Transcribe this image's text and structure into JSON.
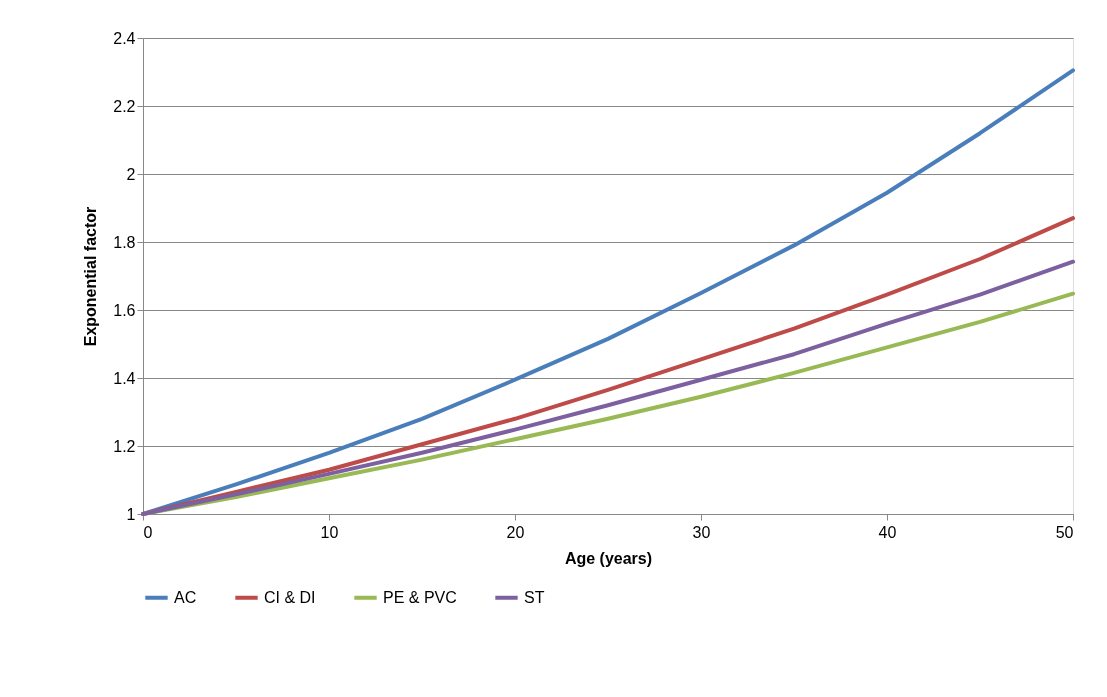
{
  "chart_data": {
    "type": "line",
    "xlabel": "Age (years)",
    "ylabel": "Exponential factor",
    "x": [
      0,
      5,
      10,
      15,
      20,
      25,
      30,
      35,
      40,
      45,
      50
    ],
    "series": [
      {
        "name": "AC",
        "color": "#4a7ebb",
        "values": [
          1,
          1.087,
          1.18,
          1.28,
          1.395,
          1.515,
          1.65,
          1.79,
          1.945,
          2.12,
          2.305
        ]
      },
      {
        "name": "CI & DI",
        "color": "#be4b48",
        "values": [
          1,
          1.065,
          1.13,
          1.205,
          1.28,
          1.365,
          1.455,
          1.545,
          1.645,
          1.75,
          1.87
        ]
      },
      {
        "name": "PE & PVC",
        "color": "#98b954",
        "values": [
          1,
          1.05,
          1.105,
          1.16,
          1.22,
          1.28,
          1.345,
          1.415,
          1.49,
          1.565,
          1.648
        ]
      },
      {
        "name": "ST",
        "color": "#7d60a0",
        "values": [
          1,
          1.058,
          1.118,
          1.18,
          1.248,
          1.32,
          1.395,
          1.47,
          1.56,
          1.645,
          1.742
        ]
      }
    ],
    "xlim": [
      0,
      50
    ],
    "xticks": [
      0,
      10,
      20,
      30,
      40,
      50
    ],
    "ylim": [
      1,
      2.4
    ],
    "yticks": [
      1,
      1.2,
      1.4,
      1.6,
      1.8,
      2,
      2.2,
      2.4
    ],
    "grid": "y",
    "legend": "bottom",
    "marker": "none",
    "line_style": "solid"
  }
}
